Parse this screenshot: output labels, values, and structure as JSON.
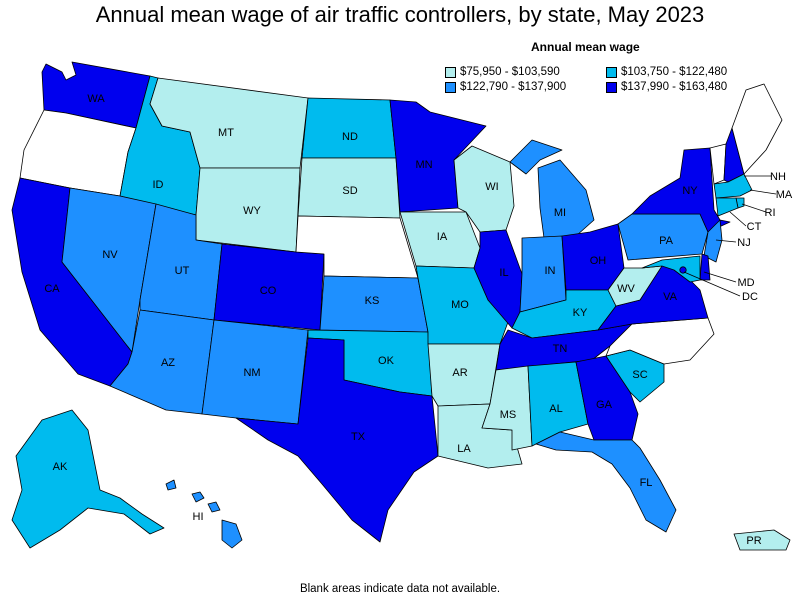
{
  "title": "Annual mean wage of air traffic controllers, by state, May 2023",
  "legend": {
    "title": "Annual mean wage",
    "bins": [
      {
        "label": "$75,950 - $103,590",
        "color": "#b3eeee"
      },
      {
        "label": "$103,750 - $122,480",
        "color": "#00bbee"
      },
      {
        "label": "$122,790 - $137,900",
        "color": "#1e90ff"
      },
      {
        "label": "$137,990 - $163,480",
        "color": "#0000ee"
      }
    ]
  },
  "no_data_color": "#ffffff",
  "footnote": "Blank areas indicate data not available.",
  "states": {
    "WA": {
      "label": "WA",
      "bin": 3
    },
    "OR": {
      "label": "",
      "bin": -1
    },
    "CA": {
      "label": "CA",
      "bin": 3
    },
    "ID": {
      "label": "ID",
      "bin": 1
    },
    "NV": {
      "label": "NV",
      "bin": 2
    },
    "MT": {
      "label": "MT",
      "bin": 0
    },
    "WY": {
      "label": "WY",
      "bin": 0
    },
    "UT": {
      "label": "UT",
      "bin": 2
    },
    "AZ": {
      "label": "AZ",
      "bin": 2
    },
    "CO": {
      "label": "CO",
      "bin": 3
    },
    "NM": {
      "label": "NM",
      "bin": 2
    },
    "ND": {
      "label": "ND",
      "bin": 1
    },
    "SD": {
      "label": "SD",
      "bin": 0
    },
    "NE": {
      "label": "",
      "bin": -1
    },
    "KS": {
      "label": "KS",
      "bin": 2
    },
    "OK": {
      "label": "OK",
      "bin": 1
    },
    "TX": {
      "label": "TX",
      "bin": 3
    },
    "MN": {
      "label": "MN",
      "bin": 3
    },
    "IA": {
      "label": "IA",
      "bin": 0
    },
    "MO": {
      "label": "MO",
      "bin": 1
    },
    "AR": {
      "label": "AR",
      "bin": 0
    },
    "LA": {
      "label": "LA",
      "bin": 0
    },
    "WI": {
      "label": "WI",
      "bin": 0
    },
    "IL": {
      "label": "IL",
      "bin": 3
    },
    "MI": {
      "label": "MI",
      "bin": 2
    },
    "IN": {
      "label": "IN",
      "bin": 2
    },
    "OH": {
      "label": "OH",
      "bin": 3
    },
    "KY": {
      "label": "KY",
      "bin": 1
    },
    "TN": {
      "label": "TN",
      "bin": 3
    },
    "MS": {
      "label": "MS",
      "bin": 0
    },
    "AL": {
      "label": "AL",
      "bin": 1
    },
    "GA": {
      "label": "GA",
      "bin": 3
    },
    "FL": {
      "label": "FL",
      "bin": 2
    },
    "SC": {
      "label": "SC",
      "bin": 1
    },
    "NC": {
      "label": "",
      "bin": -1
    },
    "VA": {
      "label": "VA",
      "bin": 3
    },
    "WV": {
      "label": "WV",
      "bin": 0
    },
    "PA": {
      "label": "PA",
      "bin": 2
    },
    "NY": {
      "label": "NY",
      "bin": 3
    },
    "VT": {
      "label": "",
      "bin": -1
    },
    "NH": {
      "label": "NH",
      "bin": 3
    },
    "ME": {
      "label": "",
      "bin": -1
    },
    "MA": {
      "label": "MA",
      "bin": 1
    },
    "RI": {
      "label": "RI",
      "bin": 1
    },
    "CT": {
      "label": "CT",
      "bin": 1
    },
    "NJ": {
      "label": "NJ",
      "bin": 2
    },
    "DE": {
      "label": "",
      "bin": 3
    },
    "MD": {
      "label": "MD",
      "bin": 1
    },
    "DC": {
      "label": "DC",
      "bin": 3
    },
    "AK": {
      "label": "AK",
      "bin": 1
    },
    "HI": {
      "label": "HI",
      "bin": 2
    },
    "PR": {
      "label": "PR",
      "bin": 0
    }
  }
}
